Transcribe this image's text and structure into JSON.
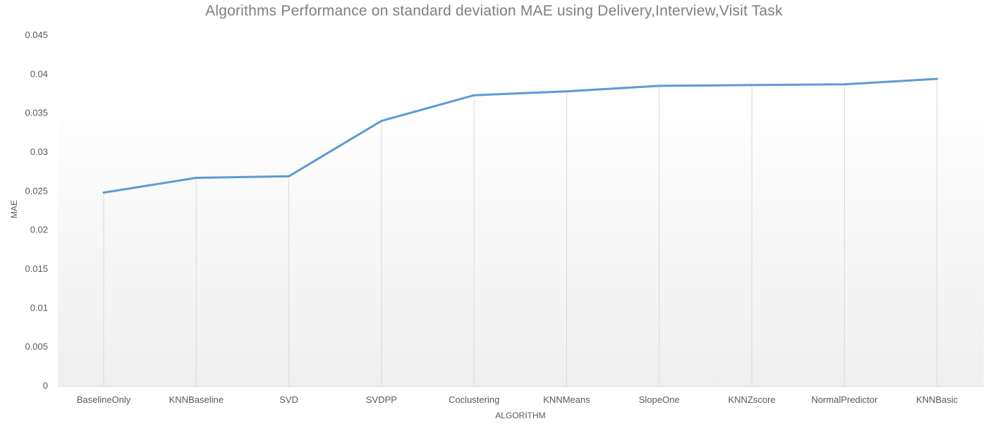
{
  "chart_data": {
    "type": "line",
    "title": "Algorithms Performance on standard deviation MAE using Delivery,Interview,Visit Task",
    "xlabel": "ALGORITHM",
    "ylabel": "MAE",
    "categories": [
      "BaselineOnly",
      "KNNBaseline",
      "SVD",
      "SVDPP",
      "Coclustering",
      "KNNMeans",
      "SlopeOne",
      "KNNZscore",
      "NormalPredictor",
      "KNNBasic"
    ],
    "series": [
      {
        "values": [
          0.0248,
          0.0267,
          0.0269,
          0.034,
          0.0373,
          0.0378,
          0.0385,
          0.0386,
          0.0387,
          0.0394
        ]
      }
    ],
    "ylim": [
      0,
      0.045
    ],
    "yticks": [
      "0",
      "0.005",
      "0.01",
      "0.015",
      "0.02",
      "0.025",
      "0.03",
      "0.035",
      "0.04",
      "0.045"
    ],
    "ytick_values": [
      0,
      0.005,
      0.01,
      0.015,
      0.02,
      0.025,
      0.03,
      0.035,
      0.04,
      0.045
    ],
    "grid": "vertical drop lines",
    "legend": "none",
    "colors": {
      "line": "#5b9bd5",
      "drop_line": "#d9d9d9",
      "axis": "#d9d9d9",
      "plot_bg_top": "#ffffff",
      "plot_bg_bottom": "#efefef",
      "text": "#595959",
      "title": "#7f7f7f"
    }
  }
}
